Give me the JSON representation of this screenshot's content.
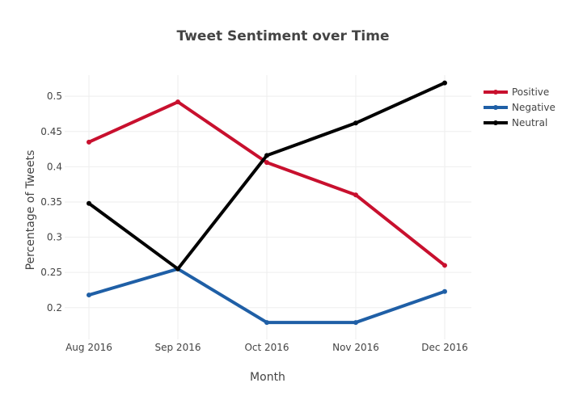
{
  "chart_data": {
    "type": "line",
    "title": "Tweet Sentiment over Time",
    "xlabel": "Month",
    "ylabel": "Percentage of Tweets",
    "categories": [
      "Aug 2016",
      "Sep 2016",
      "Oct 2016",
      "Nov 2016",
      "Dec 2016"
    ],
    "ylim": [
      0.155,
      0.53
    ],
    "yticks": [
      0.2,
      0.25,
      0.3,
      0.35,
      0.4,
      0.45,
      0.5
    ],
    "ytick_labels": [
      "0.2",
      "0.25",
      "0.3",
      "0.35",
      "0.4",
      "0.45",
      "0.5"
    ],
    "grid": true,
    "legend_position": "top-right",
    "series": [
      {
        "name": "Positive",
        "color": "#c8102e",
        "values": [
          0.435,
          0.492,
          0.406,
          0.36,
          0.26
        ]
      },
      {
        "name": "Negative",
        "color": "#1f5fa6",
        "values": [
          0.218,
          0.255,
          0.179,
          0.179,
          0.223
        ]
      },
      {
        "name": "Neutral",
        "color": "#000000",
        "values": [
          0.348,
          0.255,
          0.416,
          0.462,
          0.519
        ]
      }
    ]
  }
}
